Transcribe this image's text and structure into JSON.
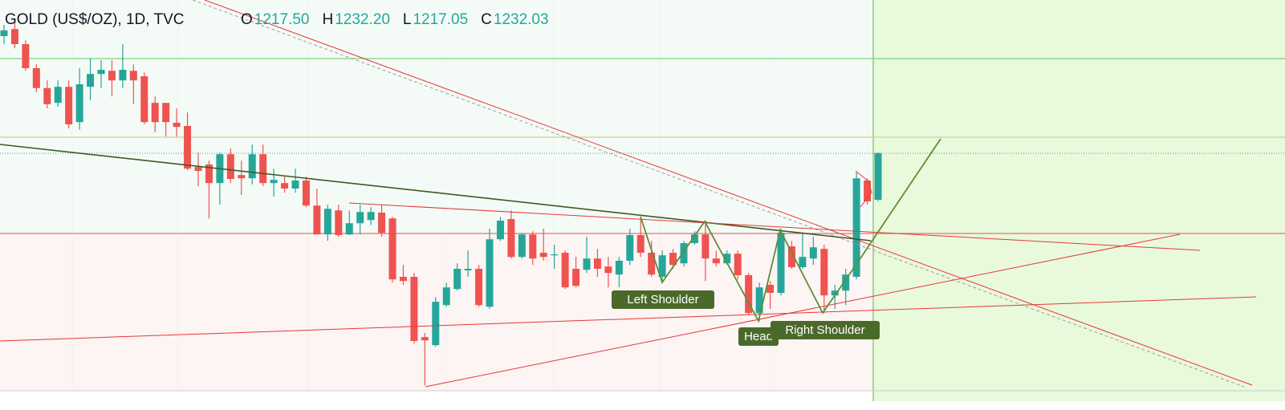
{
  "chart_data": {
    "type": "candlestick",
    "symbol": "GOLD (US$/OZ), 1D, TVC",
    "ohlc_legend": [
      {
        "label": "O",
        "value": "1217.50"
      },
      {
        "label": "H",
        "value": "1232.20"
      },
      {
        "label": "L",
        "value": "1217.05"
      },
      {
        "label": "C",
        "value": "1232.03"
      }
    ],
    "annotations": [
      "Left Shoulder",
      "Head",
      "Right Shoulder"
    ],
    "up_color": "#26a69a",
    "down_color": "#ef5350",
    "ylim": [
      1157.25,
      1279.75
    ],
    "open": [
      1268.5,
      1270.7,
      1266,
      1258.5,
      1252.3,
      1247.7,
      1252.7,
      1241.7,
      1252.7,
      1256.7,
      1257.7,
      1254.7,
      1257.7,
      1256,
      1247.7,
      1247.7,
      1241.5,
      1240.5,
      1227.7,
      1228.5,
      1222.7,
      1231.7,
      1225.2,
      1224.2,
      1231.7,
      1222.7,
      1222.7,
      1221,
      1223.5,
      1215.7,
      1206.7,
      1214.2,
      1206.7,
      1210.2,
      1211.2,
      1213.5,
      1211.7,
      1193.5,
      1193.5,
      1174.7,
      1172.2,
      1184.7,
      1189.7,
      1195.5,
      1196,
      1184.2,
      1205.2,
      1211.5,
      1199.7,
      1206.7,
      1201,
      1200.2,
      1201,
      1196,
      1195.7,
      1199.2,
      1196.7,
      1194.2,
      1198.5,
      1206.5,
      1201,
      1193.5,
      1201,
      1197.7,
      1204,
      1206.7,
      1199.2,
      1197.7,
      1200.7,
      1194,
      1182.2,
      1191,
      1188.5,
      1203,
      1196.5,
      1199.2,
      1202.2,
      1187.7,
      1189.2,
      1193.5,
      1223.5,
      1217.5
    ],
    "high": [
      1272,
      1273.5,
      1267.2,
      1259.7,
      1254.7,
      1254.7,
      1254.7,
      1258.5,
      1261.7,
      1261,
      1261,
      1266,
      1259.7,
      1257.2,
      1249.7,
      1247.7,
      1246,
      1244.7,
      1232.2,
      1229.7,
      1232.2,
      1233.5,
      1229.7,
      1234.7,
      1234.7,
      1227.2,
      1224.7,
      1227.2,
      1224.7,
      1221,
      1216,
      1216,
      1214.2,
      1216,
      1215.2,
      1216,
      1212.2,
      1197.2,
      1194.7,
      1176,
      1187.2,
      1191.7,
      1197.7,
      1201.7,
      1197.2,
      1208.5,
      1212.2,
      1214.2,
      1207.2,
      1207.7,
      1208.5,
      1203.5,
      1201.7,
      1199.7,
      1206,
      1202.2,
      1199.7,
      1199.7,
      1208.5,
      1212.2,
      1204.7,
      1201.7,
      1202.2,
      1204.7,
      1207.7,
      1211,
      1201.7,
      1201.7,
      1201.7,
      1194.7,
      1191.7,
      1192.2,
      1208.5,
      1204.7,
      1207.2,
      1206,
      1203.5,
      1191,
      1196,
      1226,
      1224.2,
      1232.2
    ],
    "low": [
      1266,
      1264.7,
      1257.7,
      1251,
      1246,
      1246.5,
      1239.7,
      1239.3,
      1248.5,
      1252.3,
      1249.7,
      1252.3,
      1247.3,
      1241,
      1238.5,
      1237.2,
      1237.2,
      1226.7,
      1221.7,
      1211.7,
      1216,
      1222.7,
      1219,
      1222.3,
      1221.7,
      1218.5,
      1219.7,
      1219.7,
      1215.2,
      1206.7,
      1204.7,
      1206,
      1206.5,
      1206.7,
      1209.7,
      1206,
      1191.7,
      1191,
      1172.7,
      1159.7,
      1171.7,
      1184.2,
      1189.2,
      1193.5,
      1184.2,
      1183.5,
      1204.7,
      1199.2,
      1199.2,
      1197.2,
      1198.5,
      1196,
      1189.7,
      1190.2,
      1194.7,
      1193.5,
      1190.2,
      1190.2,
      1197.2,
      1199.7,
      1193.5,
      1192.2,
      1196,
      1196.7,
      1203.5,
      1192.2,
      1196.7,
      1197.2,
      1192.7,
      1181.7,
      1179.7,
      1183.5,
      1187.7,
      1196,
      1196,
      1197.2,
      1182.2,
      1183.5,
      1184.7,
      1192.7,
      1216,
      1217.05
    ],
    "close": [
      1270.3,
      1266,
      1258.5,
      1252.3,
      1247.3,
      1252.7,
      1241,
      1253.5,
      1256.7,
      1258,
      1254.7,
      1258,
      1254.7,
      1241.7,
      1241.7,
      1241.7,
      1240.2,
      1227.2,
      1226.5,
      1222.7,
      1231.7,
      1224,
      1224.2,
      1231.7,
      1222.7,
      1223.7,
      1221,
      1223.5,
      1215.7,
      1206.7,
      1214.7,
      1206.5,
      1210.2,
      1213.7,
      1213.7,
      1207.2,
      1192.7,
      1192.2,
      1173.5,
      1173.7,
      1185.7,
      1190.2,
      1196,
      1196,
      1184.7,
      1205.2,
      1211,
      1199.7,
      1206.7,
      1199.2,
      1199.7,
      1200.5,
      1190.2,
      1190.7,
      1199.2,
      1196,
      1194.7,
      1198.5,
      1206.5,
      1201,
      1194.2,
      1200.2,
      1197.2,
      1204,
      1206.7,
      1199.2,
      1197.7,
      1200.7,
      1194,
      1182.2,
      1190.2,
      1188.5,
      1207.2,
      1196.5,
      1199.7,
      1202.7,
      1187.7,
      1189.2,
      1194.2,
      1224.2,
      1217,
      1232.03
    ]
  }
}
